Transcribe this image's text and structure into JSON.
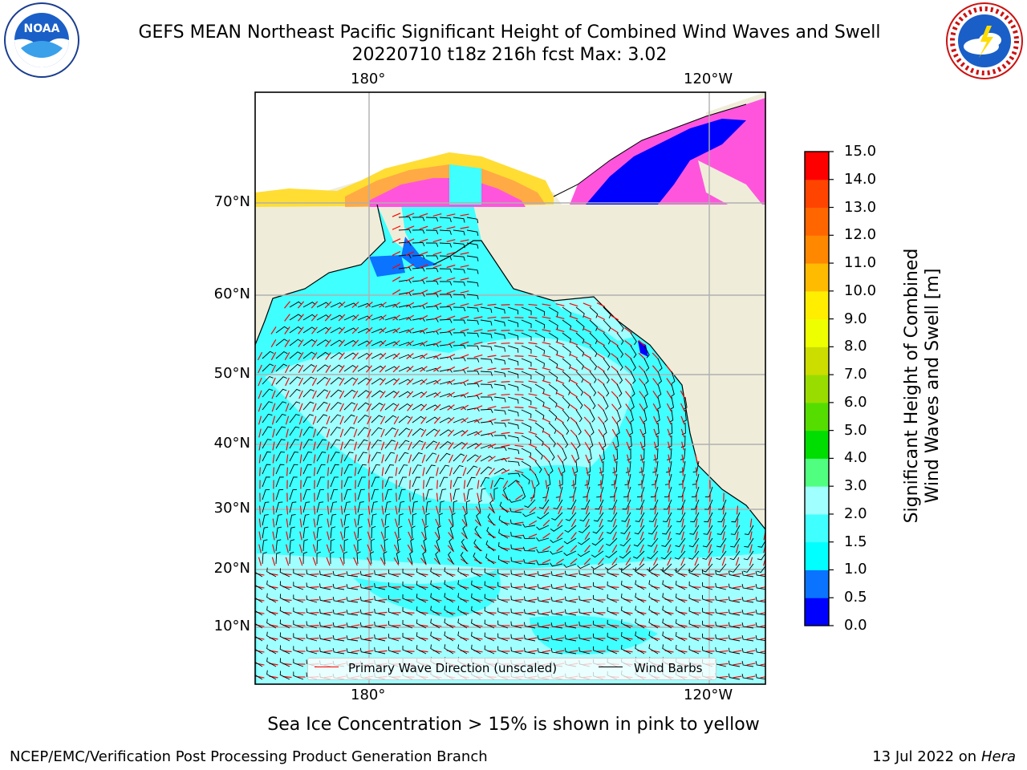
{
  "title_line1": "GEFS MEAN Northeast Pacific Significant Height of Combined Wind Waves and Swell",
  "title_line2": "20220710 t18z 216h fcst   Max: 3.02",
  "top_axis_labels": [
    "180°",
    "120°W"
  ],
  "bottom_axis_labels": [
    "180°",
    "120°W"
  ],
  "lat_labels": [
    "70°N",
    "60°N",
    "50°N",
    "40°N",
    "30°N",
    "20°N",
    "10°N"
  ],
  "colorbar": {
    "label_line1": "Significant Height of Combined",
    "label_line2": "Wind Waves and Swell [m]",
    "ticks": [
      "0.0",
      "0.5",
      "1.0",
      "1.5",
      "2.0",
      "3.0",
      "4.0",
      "5.0",
      "6.0",
      "7.0",
      "8.0",
      "9.0",
      "10.0",
      "11.0",
      "12.0",
      "13.0",
      "14.0",
      "15.0"
    ],
    "colors": [
      "#0000ff",
      "#0a73ff",
      "#00ffff",
      "#40ffff",
      "#a0ffff",
      "#50ff80",
      "#00dd00",
      "#55dd00",
      "#99dd00",
      "#ccdd00",
      "#eeff00",
      "#ffee00",
      "#ffbb00",
      "#ff8800",
      "#ff6600",
      "#ff4400",
      "#ff0000"
    ]
  },
  "legend": {
    "wave_label": "Primary Wave Direction (unscaled)",
    "wind_label": "Wind Barbs",
    "wave_color": "#ff0000",
    "wind_color": "#000000"
  },
  "map_colors": {
    "land": "#efedd9",
    "ocean_low": "#40ffff",
    "ocean_mid": "#a0ffff",
    "ice_pink": "#ff55dd",
    "ice_orange": "#ffaa44",
    "ice_yellow": "#ffdd33",
    "ice_blue": "#0033ff"
  },
  "note": "Sea Ice Concentration > 15% is shown in pink to yellow",
  "footer_left": "NCEP/EMC/Verification Post Processing Product Generation Branch",
  "footer_right_prefix": "13 Jul 2022 on ",
  "footer_right_machine": "Hera",
  "logos": {
    "left": "noaa-logo",
    "right": "nws-logo"
  }
}
